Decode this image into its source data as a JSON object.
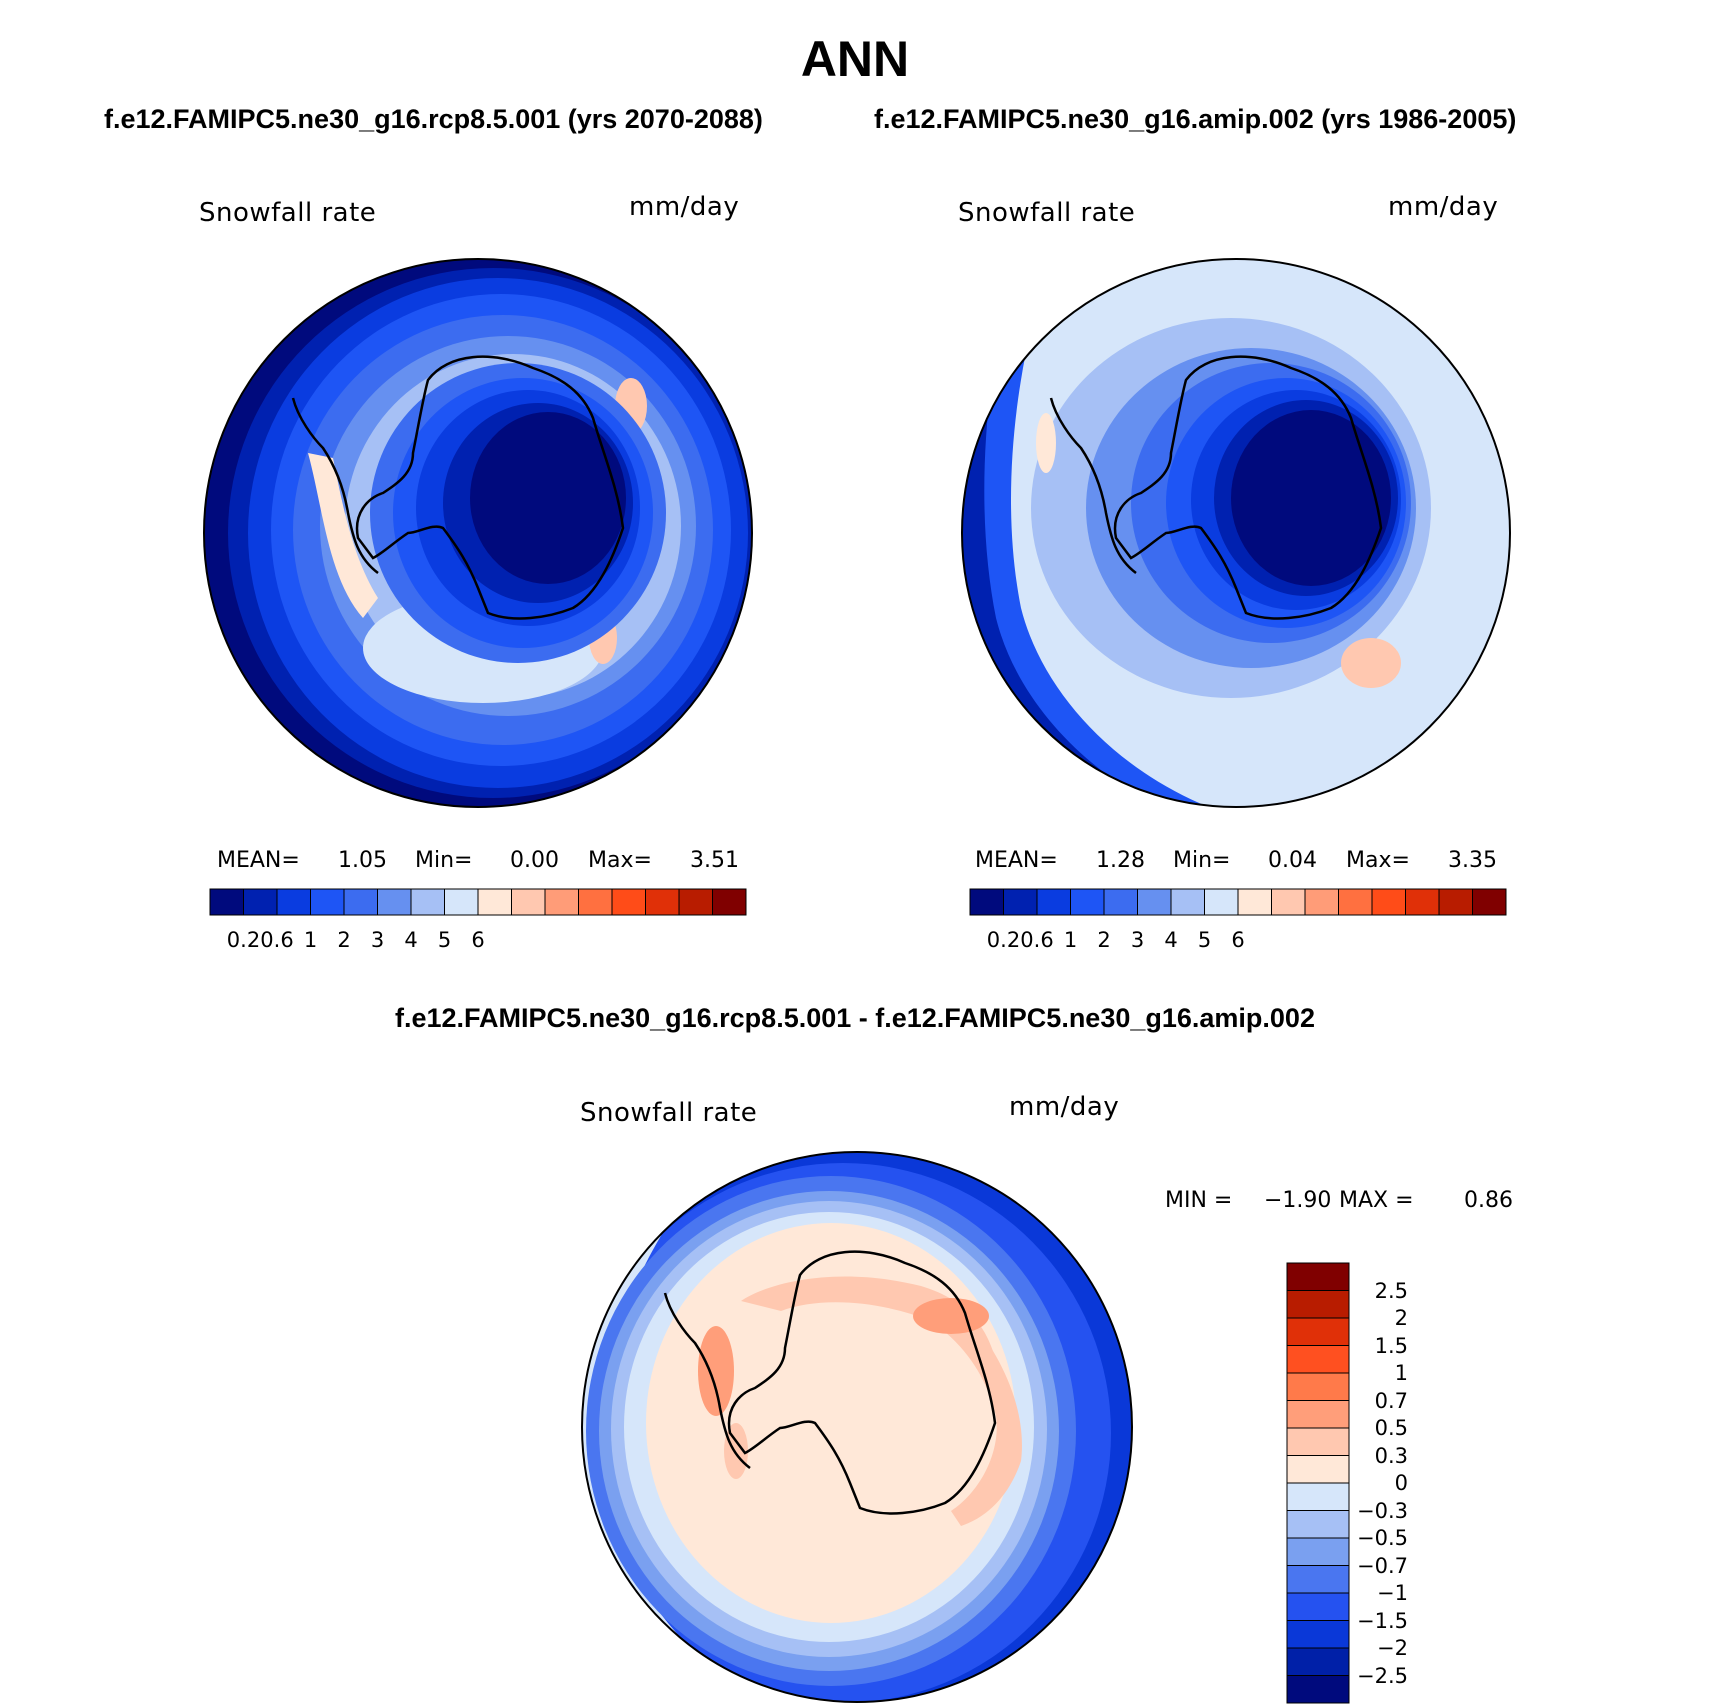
{
  "figure": {
    "title": "ANN",
    "case1_title": "f.e12.FAMIPC5.ne30_g16.rcp8.5.001 (yrs 2070-2088)",
    "case2_title": "f.e12.FAMIPC5.ne30_g16.amip.002 (yrs 1986-2005)",
    "diff_title": "f.e12.FAMIPC5.ne30_g16.rcp8.5.001 - f.e12.FAMIPC5.ne30_g16.amip.002"
  },
  "panels": {
    "left": {
      "variable": "Snowfall rate",
      "units": "mm/day",
      "mean_label": "MEAN=",
      "mean": "1.05",
      "min_label": "Min=",
      "min": "0.00",
      "max_label": "Max=",
      "max": "3.51"
    },
    "right": {
      "variable": "Snowfall rate",
      "units": "mm/day",
      "mean_label": "MEAN=",
      "mean": "1.28",
      "min_label": "Min=",
      "min": "0.04",
      "max_label": "Max=",
      "max": "3.35"
    },
    "diff": {
      "variable": "Snowfall rate",
      "units": "mm/day",
      "min_label": "MIN =",
      "min": "−1.90",
      "max_label": "MAX =",
      "max": "0.86"
    }
  },
  "colorbar_abs": {
    "colors": [
      "#000a7d",
      "#0021b0",
      "#0a3ce0",
      "#1e55f5",
      "#3c6cf0",
      "#6690f0",
      "#a6c0f5",
      "#d6e6fa",
      "#ffe8d8",
      "#ffc8b0",
      "#ff9c78",
      "#ff7040",
      "#ff4c18",
      "#e03008",
      "#b81c00",
      "#800000"
    ],
    "tick_labels": [
      "0.2",
      "0.6",
      "1",
      "2",
      "3",
      "4",
      "5",
      "6"
    ]
  },
  "colorbar_diff": {
    "colors": [
      "#800000",
      "#b81c00",
      "#e03008",
      "#ff5020",
      "#ff7a4a",
      "#ff9e7a",
      "#ffc8b0",
      "#ffe8d8",
      "#d6e6fa",
      "#a6c0f5",
      "#7aa0f0",
      "#4a76f0",
      "#2552f0",
      "#0a38d8",
      "#0020a8",
      "#000a7d"
    ],
    "tick_labels": [
      "2.5",
      "2",
      "1.5",
      "1",
      "0.7",
      "0.5",
      "0.3",
      "0",
      "−0.3",
      "−0.5",
      "−0.7",
      "−1",
      "−1.5",
      "−2",
      "−2.5"
    ]
  }
}
